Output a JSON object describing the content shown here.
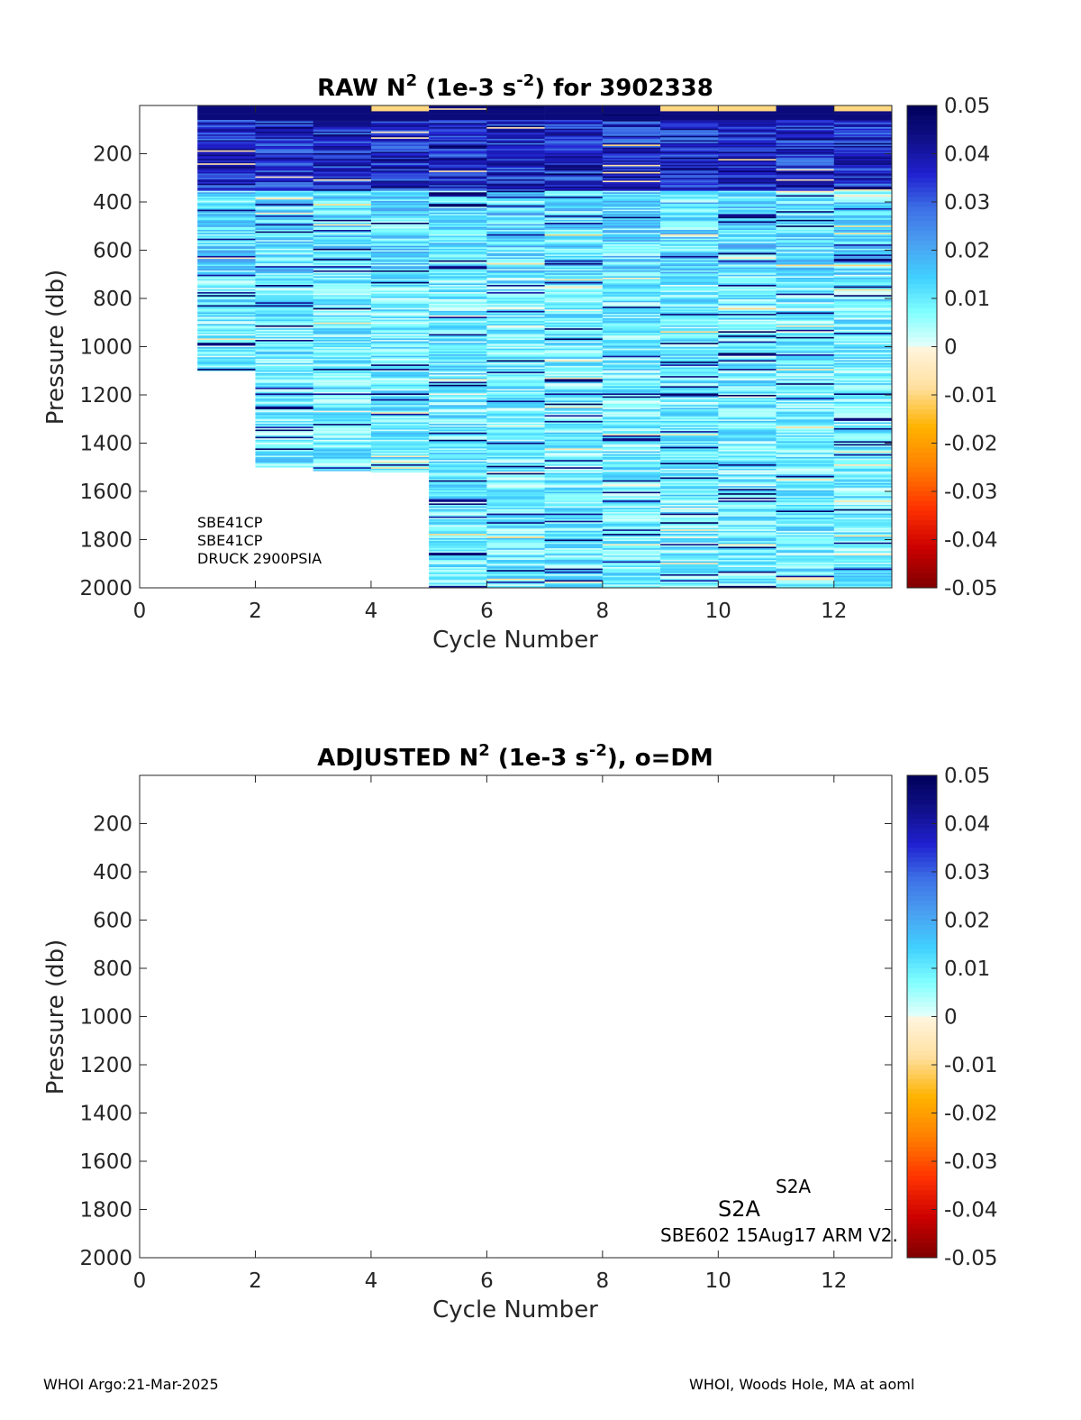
{
  "footer": {
    "left": "WHOI Argo:21-Mar-2025",
    "right": "WHOI, Woods Hole, MA at aoml"
  },
  "colors": {
    "colormap_neg": [
      "#7f0000",
      "#cc0000",
      "#ff3300",
      "#ff8000",
      "#ffb300",
      "#ffe0a0",
      "#fff5e0"
    ],
    "colormap_pos": [
      "#e6fffa",
      "#80ffff",
      "#40d0ff",
      "#4aa0f0",
      "#3d70e6",
      "#2020d0",
      "#10108a",
      "#00005a"
    ],
    "axis": "#262626"
  },
  "chart_data": [
    {
      "type": "heatmap",
      "title_main": "RAW N",
      "title_sup1": "2",
      "title_mid": " (1e-3 s",
      "title_sup2": "-2",
      "title_end": ") for 3902338",
      "xlabel": "Cycle Number",
      "ylabel": "Pressure (db)",
      "xlim": [
        0,
        13
      ],
      "ylim": [
        2000,
        0
      ],
      "xticks": [
        "0",
        "2",
        "4",
        "6",
        "8",
        "10",
        "12"
      ],
      "yticks": [
        "200",
        "400",
        "600",
        "800",
        "1000",
        "1200",
        "1400",
        "1600",
        "1800",
        "2000"
      ],
      "colorbar_ticks": [
        "0.05",
        "0.04",
        "0.03",
        "0.02",
        "0.01",
        "0",
        "-0.01",
        "-0.02",
        "-0.03",
        "-0.04",
        "-0.05"
      ],
      "clim": [
        -0.05,
        0.05
      ],
      "columns": [
        {
          "cycle": 1,
          "pmax": 1100
        },
        {
          "cycle": 2,
          "pmax": 1500
        },
        {
          "cycle": 3,
          "pmax": 1515
        },
        {
          "cycle": 4,
          "pmax": 1520
        },
        {
          "cycle": 5,
          "pmax": 2000
        },
        {
          "cycle": 6,
          "pmax": 2000
        },
        {
          "cycle": 7,
          "pmax": 2000
        },
        {
          "cycle": 8,
          "pmax": 2000
        },
        {
          "cycle": 9,
          "pmax": 2000
        },
        {
          "cycle": 10,
          "pmax": 2000
        },
        {
          "cycle": 11,
          "pmax": 2000
        },
        {
          "cycle": 12,
          "pmax": 2000
        }
      ],
      "annotations": [
        "SBE41CP",
        "SBE41CP",
        "DRUCK 2900PSIA"
      ]
    },
    {
      "type": "heatmap",
      "title_main": "ADJUSTED N",
      "title_sup1": "2",
      "title_mid": " (1e-3 s",
      "title_sup2": "-2",
      "title_end": "), o=DM",
      "xlabel": "Cycle Number",
      "ylabel": "Pressure (db)",
      "xlim": [
        0,
        13
      ],
      "ylim": [
        2000,
        0
      ],
      "xticks": [
        "0",
        "2",
        "4",
        "6",
        "8",
        "10",
        "12"
      ],
      "yticks": [
        "200",
        "400",
        "600",
        "800",
        "1000",
        "1200",
        "1400",
        "1600",
        "1800",
        "2000"
      ],
      "colorbar_ticks": [
        "0.05",
        "0.04",
        "0.03",
        "0.02",
        "0.01",
        "0",
        "-0.01",
        "-0.02",
        "-0.03",
        "-0.04",
        "-0.05"
      ],
      "clim": [
        -0.05,
        0.05
      ],
      "columns": [],
      "annotations": [
        "S2A",
        "S2A",
        "SBE602 15Aug17 ARM V2."
      ]
    }
  ]
}
